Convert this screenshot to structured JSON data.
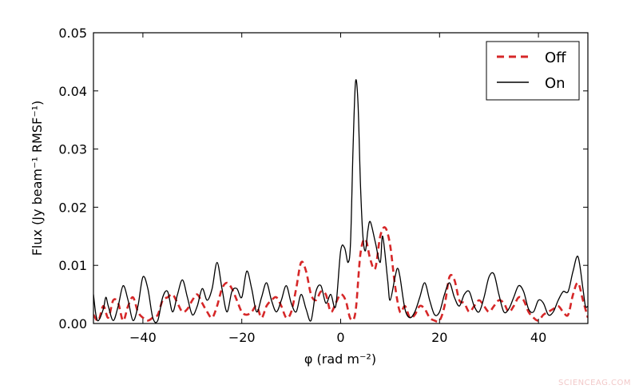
{
  "chart_data": {
    "type": "line",
    "title": "",
    "xlabel": "φ (rad m⁻²)",
    "ylabel": "Flux (Jy beam⁻¹ RMSF⁻¹)",
    "xlim": [
      -50,
      50
    ],
    "ylim": [
      0,
      0.05
    ],
    "xticks": [
      -40,
      -20,
      0,
      20,
      40
    ],
    "xtick_labels": [
      "−40",
      "−20",
      "0",
      "20",
      "40"
    ],
    "yticks": [
      0,
      0.01,
      0.02,
      0.03,
      0.04,
      0.05
    ],
    "ytick_labels": [
      "0.00",
      "0.01",
      "0.02",
      "0.03",
      "0.04",
      "0.05"
    ],
    "grid": false,
    "legend_position": "top-right",
    "series": [
      {
        "name": "Off",
        "color": "#d62728",
        "style": "dashed",
        "points": [
          [
            -50,
            0.0015
          ],
          [
            -49,
            0.0005
          ],
          [
            -48,
            0.003
          ],
          [
            -47,
            0.001
          ],
          [
            -46,
            0.004
          ],
          [
            -45,
            0.0035
          ],
          [
            -44,
            0.0005
          ],
          [
            -43,
            0.003
          ],
          [
            -42,
            0.0045
          ],
          [
            -41,
            0.002
          ],
          [
            -40,
            0.001
          ],
          [
            -39,
            0.0005
          ],
          [
            -38,
            0.001
          ],
          [
            -37,
            0.0015
          ],
          [
            -36,
            0.004
          ],
          [
            -35,
            0.0045
          ],
          [
            -34,
            0.005
          ],
          [
            -33,
            0.0035
          ],
          [
            -32,
            0.002
          ],
          [
            -31,
            0.0025
          ],
          [
            -30,
            0.004
          ],
          [
            -29,
            0.005
          ],
          [
            -28,
            0.0035
          ],
          [
            -27,
            0.002
          ],
          [
            -26,
            0.001
          ],
          [
            -25,
            0.003
          ],
          [
            -24,
            0.006
          ],
          [
            -23,
            0.007
          ],
          [
            -22,
            0.006
          ],
          [
            -21,
            0.004
          ],
          [
            -20,
            0.002
          ],
          [
            -19,
            0.0015
          ],
          [
            -18,
            0.002
          ],
          [
            -17,
            0.003
          ],
          [
            -16,
            0.001
          ],
          [
            -15,
            0.003
          ],
          [
            -14,
            0.004
          ],
          [
            -13,
            0.0045
          ],
          [
            -12,
            0.003
          ],
          [
            -11,
            0.001
          ],
          [
            -10,
            0.002
          ],
          [
            -9,
            0.006
          ],
          [
            -8,
            0.0105
          ],
          [
            -7,
            0.009
          ],
          [
            -6,
            0.005
          ],
          [
            -5,
            0.004
          ],
          [
            -4,
            0.0055
          ],
          [
            -3,
            0.005
          ],
          [
            -2,
            0.002
          ],
          [
            -1,
            0.0035
          ],
          [
            0,
            0.005
          ],
          [
            1,
            0.004
          ],
          [
            2,
            0.0008
          ],
          [
            3,
            0.002
          ],
          [
            4,
            0.012
          ],
          [
            5,
            0.0145
          ],
          [
            6,
            0.011
          ],
          [
            7,
            0.0095
          ],
          [
            8,
            0.015
          ],
          [
            9,
            0.0165
          ],
          [
            10,
            0.0135
          ],
          [
            11,
            0.0065
          ],
          [
            12,
            0.002
          ],
          [
            13,
            0.003
          ],
          [
            14,
            0.001
          ],
          [
            15,
            0.0015
          ],
          [
            16,
            0.003
          ],
          [
            17,
            0.0025
          ],
          [
            18,
            0.001
          ],
          [
            19,
            0.0005
          ],
          [
            20,
            0.0005
          ],
          [
            21,
            0.003
          ],
          [
            22,
            0.008
          ],
          [
            23,
            0.0075
          ],
          [
            24,
            0.004
          ],
          [
            25,
            0.0035
          ],
          [
            26,
            0.002
          ],
          [
            27,
            0.003
          ],
          [
            28,
            0.004
          ],
          [
            29,
            0.003
          ],
          [
            30,
            0.002
          ],
          [
            31,
            0.003
          ],
          [
            32,
            0.004
          ],
          [
            33,
            0.0035
          ],
          [
            34,
            0.002
          ],
          [
            35,
            0.003
          ],
          [
            36,
            0.0045
          ],
          [
            37,
            0.004
          ],
          [
            38,
            0.002
          ],
          [
            39,
            0.001
          ],
          [
            40,
            0.0005
          ],
          [
            41,
            0.0015
          ],
          [
            42,
            0.002
          ],
          [
            43,
            0.0025
          ],
          [
            44,
            0.003
          ],
          [
            45,
            0.002
          ],
          [
            46,
            0.0015
          ],
          [
            47,
            0.005
          ],
          [
            48,
            0.007
          ],
          [
            49,
            0.004
          ],
          [
            50,
            0.001
          ]
        ]
      },
      {
        "name": "On",
        "color": "#000000",
        "style": "solid",
        "points": [
          [
            -50,
            0.005
          ],
          [
            -49.5,
            0.0015
          ],
          [
            -49,
            0.0005
          ],
          [
            -48,
            0.0025
          ],
          [
            -47.5,
            0.0045
          ],
          [
            -47,
            0.003
          ],
          [
            -46,
            0.0005
          ],
          [
            -45,
            0.003
          ],
          [
            -44,
            0.0065
          ],
          [
            -43,
            0.004
          ],
          [
            -42,
            0.0005
          ],
          [
            -41,
            0.003
          ],
          [
            -40,
            0.008
          ],
          [
            -39,
            0.006
          ],
          [
            -38,
            0.001
          ],
          [
            -37,
            0.0005
          ],
          [
            -36,
            0.0045
          ],
          [
            -35,
            0.0055
          ],
          [
            -34,
            0.002
          ],
          [
            -33,
            0.005
          ],
          [
            -32,
            0.0075
          ],
          [
            -31,
            0.0045
          ],
          [
            -30,
            0.0015
          ],
          [
            -29,
            0.003
          ],
          [
            -28,
            0.006
          ],
          [
            -27,
            0.004
          ],
          [
            -26,
            0.006
          ],
          [
            -25,
            0.0105
          ],
          [
            -24,
            0.006
          ],
          [
            -23,
            0.002
          ],
          [
            -22,
            0.0055
          ],
          [
            -21,
            0.006
          ],
          [
            -20,
            0.0045
          ],
          [
            -19,
            0.009
          ],
          [
            -18,
            0.006
          ],
          [
            -17,
            0.002
          ],
          [
            -16,
            0.0045
          ],
          [
            -15,
            0.007
          ],
          [
            -14,
            0.004
          ],
          [
            -13,
            0.002
          ],
          [
            -12,
            0.004
          ],
          [
            -11,
            0.0065
          ],
          [
            -10,
            0.0035
          ],
          [
            -9,
            0.002
          ],
          [
            -8,
            0.005
          ],
          [
            -7,
            0.0025
          ],
          [
            -6,
            0.0005
          ],
          [
            -5,
            0.0055
          ],
          [
            -4,
            0.0065
          ],
          [
            -3,
            0.0035
          ],
          [
            -2,
            0.005
          ],
          [
            -1,
            0.003
          ],
          [
            0,
            0.0125
          ],
          [
            0.8,
            0.013
          ],
          [
            1.5,
            0.0105
          ],
          [
            2,
            0.014
          ],
          [
            2.5,
            0.03
          ],
          [
            3,
            0.0415
          ],
          [
            3.5,
            0.038
          ],
          [
            4,
            0.024
          ],
          [
            4.5,
            0.015
          ],
          [
            5,
            0.0125
          ],
          [
            5.5,
            0.016
          ],
          [
            6,
            0.0175
          ],
          [
            7,
            0.014
          ],
          [
            8,
            0.0105
          ],
          [
            8.5,
            0.015
          ],
          [
            9.5,
            0.0075
          ],
          [
            10,
            0.004
          ],
          [
            11,
            0.008
          ],
          [
            11.5,
            0.0095
          ],
          [
            12,
            0.008
          ],
          [
            13,
            0.0025
          ],
          [
            14,
            0.001
          ],
          [
            15,
            0.002
          ],
          [
            16,
            0.0045
          ],
          [
            17,
            0.007
          ],
          [
            18,
            0.004
          ],
          [
            19,
            0.0015
          ],
          [
            20,
            0.002
          ],
          [
            21,
            0.005
          ],
          [
            22,
            0.007
          ],
          [
            23,
            0.0045
          ],
          [
            24,
            0.003
          ],
          [
            25,
            0.005
          ],
          [
            26,
            0.0055
          ],
          [
            27,
            0.003
          ],
          [
            28,
            0.002
          ],
          [
            29,
            0.0045
          ],
          [
            30,
            0.008
          ],
          [
            31,
            0.0085
          ],
          [
            32,
            0.005
          ],
          [
            33,
            0.002
          ],
          [
            34,
            0.0025
          ],
          [
            35,
            0.0045
          ],
          [
            36,
            0.0065
          ],
          [
            37,
            0.0055
          ],
          [
            38,
            0.0025
          ],
          [
            39,
            0.002
          ],
          [
            40,
            0.004
          ],
          [
            41,
            0.0035
          ],
          [
            42,
            0.0015
          ],
          [
            43,
            0.002
          ],
          [
            44,
            0.004
          ],
          [
            45,
            0.0055
          ],
          [
            46,
            0.0055
          ],
          [
            47,
            0.009
          ],
          [
            48,
            0.0115
          ],
          [
            49,
            0.006
          ],
          [
            49.5,
            0.003
          ],
          [
            50,
            0.003
          ]
        ]
      }
    ]
  },
  "watermark": "SCIENCEAG.COM"
}
